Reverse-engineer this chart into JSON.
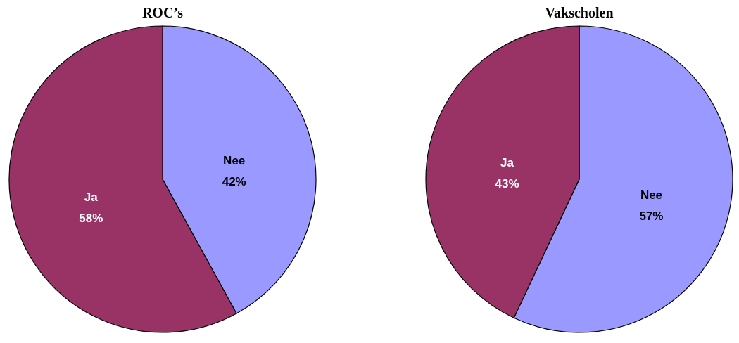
{
  "chart_data": [
    {
      "type": "pie",
      "title": "ROC’s",
      "categories": [
        "Nee",
        "Ja"
      ],
      "values": [
        42,
        58
      ],
      "colors": [
        "#9999ff",
        "#993366"
      ],
      "value_labels": [
        "42%",
        "58%"
      ]
    },
    {
      "type": "pie",
      "title": "Vakscholen",
      "categories": [
        "Nee",
        "Ja"
      ],
      "values": [
        57,
        43
      ],
      "colors": [
        "#9999ff",
        "#993366"
      ],
      "value_labels": [
        "57%",
        "43%"
      ]
    }
  ]
}
